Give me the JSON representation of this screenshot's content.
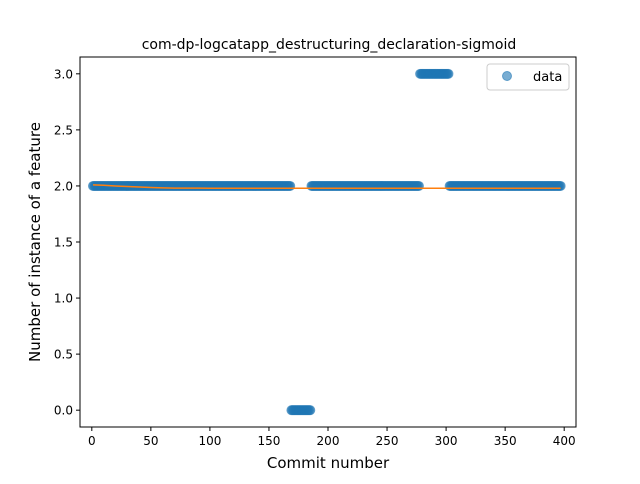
{
  "chart_data": {
    "type": "scatter",
    "title": "com-dp-logcatapp_destructuring_declaration-sigmoid",
    "xlabel": "Commit number",
    "ylabel": "Number of instance of a feature",
    "xlim": [
      -10,
      410
    ],
    "ylim": [
      -0.15,
      3.15
    ],
    "x_ticks": [
      0,
      50,
      100,
      150,
      200,
      250,
      300,
      350,
      400
    ],
    "x_tick_labels": [
      "0",
      "50",
      "100",
      "150",
      "200",
      "250",
      "300",
      "350",
      "400"
    ],
    "y_ticks": [
      0.0,
      0.5,
      1.0,
      1.5,
      2.0,
      2.5,
      3.0
    ],
    "y_tick_labels": [
      "0.0",
      "0.5",
      "1.0",
      "1.5",
      "2.0",
      "2.5",
      "3.0"
    ],
    "legend": {
      "placement": "top-right",
      "entries": [
        "data"
      ]
    },
    "grid": false,
    "series": [
      {
        "name": "data",
        "kind": "scatter",
        "color": "#1f77b4",
        "segments": [
          {
            "x_start": 1,
            "x_end": 168,
            "y": 2
          },
          {
            "x_start": 169,
            "x_end": 185,
            "y": 0
          },
          {
            "x_start": 186,
            "x_end": 277,
            "y": 2
          },
          {
            "x_start": 278,
            "x_end": 302,
            "y": 3
          },
          {
            "x_start": 303,
            "x_end": 397,
            "y": 2
          }
        ]
      },
      {
        "kind": "line",
        "color": "#ff7f0e",
        "x": [
          1,
          10,
          20,
          30,
          40,
          50,
          60,
          70,
          80,
          90,
          100,
          120,
          397
        ],
        "y": [
          2.01,
          2.006,
          2.0,
          1.995,
          1.99,
          1.986,
          1.983,
          1.981,
          1.98,
          1.98,
          1.979,
          1.979,
          1.979
        ]
      }
    ]
  }
}
